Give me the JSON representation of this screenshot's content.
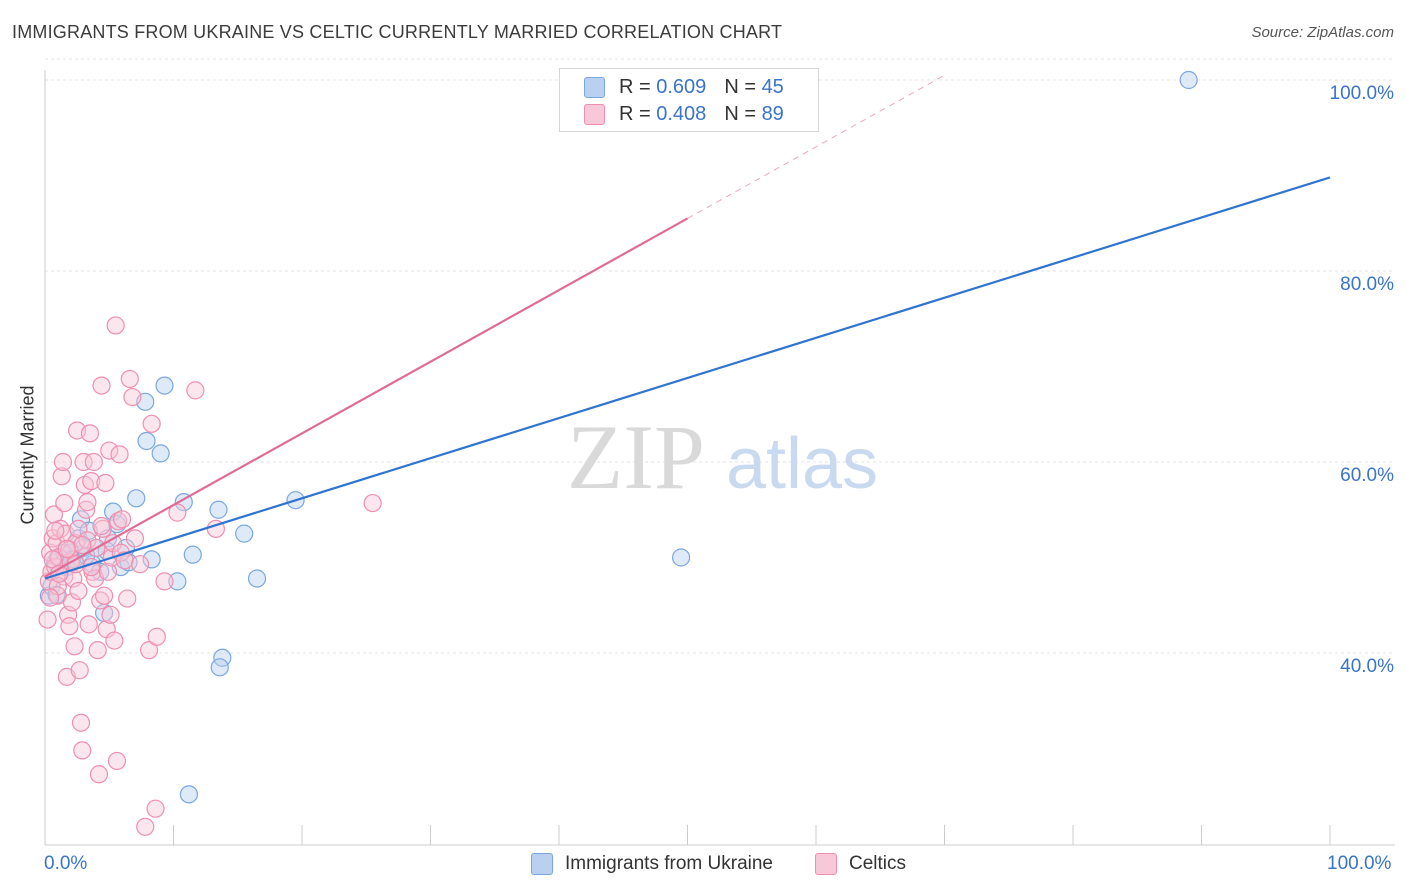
{
  "title": "IMMIGRANTS FROM UKRAINE VS CELTIC CURRENTLY MARRIED CORRELATION CHART",
  "source": "Source: ZipAtlas.com",
  "watermark": {
    "zip": "ZIP",
    "atlas": "atlas"
  },
  "legend": {
    "r_label": "R =",
    "n_label": "N =",
    "series": [
      {
        "r": "0.609",
        "n": "45"
      },
      {
        "r": "0.408",
        "n": "89"
      }
    ]
  },
  "chart_data": {
    "type": "scatter",
    "title": "IMMIGRANTS FROM UKRAINE VS CELTIC CURRENTLY MARRIED CORRELATION CHART",
    "xlabel": "",
    "ylabel": "Currently Married",
    "xlim": [
      0,
      100
    ],
    "ylim": [
      20,
      102
    ],
    "x_tick_labels": [
      "0.0%",
      "100.0%"
    ],
    "y_ticks": [
      {
        "value": 40,
        "label": "40.0%"
      },
      {
        "value": 60,
        "label": "60.0%"
      },
      {
        "value": 80,
        "label": "80.0%"
      },
      {
        "value": 100,
        "label": "100.0%"
      }
    ],
    "grid": true,
    "series": [
      {
        "name": "Immigrants from Ukraine",
        "color": "#7aa7e0",
        "fill": "#b9d0f0",
        "line_color": "#2f74d0",
        "trend": {
          "x0": 0,
          "y0": 47.8,
          "x1": 100,
          "y1": 89.8,
          "solid_to": 100
        },
        "points": [
          [
            0.3,
            46
          ],
          [
            0.5,
            47
          ],
          [
            0.8,
            49.5
          ],
          [
            1.0,
            50
          ],
          [
            1.2,
            48.5
          ],
          [
            1.5,
            50.5
          ],
          [
            1.7,
            49
          ],
          [
            2.0,
            50.5
          ],
          [
            2.3,
            49.8
          ],
          [
            2.6,
            52
          ],
          [
            2.8,
            54
          ],
          [
            3.0,
            51
          ],
          [
            3.4,
            52.8
          ],
          [
            3.7,
            49.3
          ],
          [
            4.0,
            51
          ],
          [
            4.3,
            48.5
          ],
          [
            4.6,
            44.2
          ],
          [
            4.9,
            52
          ],
          [
            5.3,
            54.8
          ],
          [
            5.6,
            53.5
          ],
          [
            5.9,
            49
          ],
          [
            6.3,
            51
          ],
          [
            6.5,
            49.5
          ],
          [
            7.1,
            56.2
          ],
          [
            7.8,
            66.3
          ],
          [
            7.9,
            62.2
          ],
          [
            8.3,
            49.8
          ],
          [
            9.0,
            60.9
          ],
          [
            9.3,
            68
          ],
          [
            10.3,
            47.5
          ],
          [
            10.8,
            55.8
          ],
          [
            11.5,
            50.3
          ],
          [
            13.5,
            55
          ],
          [
            13.8,
            39.5
          ],
          [
            13.6,
            38.5
          ],
          [
            15.5,
            52.5
          ],
          [
            16.5,
            47.8
          ],
          [
            11.2,
            25.2
          ],
          [
            19.5,
            56
          ],
          [
            49.5,
            50
          ],
          [
            89.0,
            100
          ],
          [
            2.1,
            49.8
          ],
          [
            0.9,
            46.1
          ],
          [
            3.2,
            50.2
          ],
          [
            4.8,
            50.7
          ]
        ]
      },
      {
        "name": "Celtics",
        "color": "#ee8fae",
        "fill": "#f8c8d8",
        "line_color": "#e06c95",
        "trend": {
          "x0": 0,
          "y0": 48.0,
          "x1": 70,
          "y1": 100.5,
          "solid_to": 50
        },
        "points": [
          [
            0.2,
            43.5
          ],
          [
            0.3,
            47.5
          ],
          [
            0.4,
            50.5
          ],
          [
            0.5,
            48.5
          ],
          [
            0.6,
            52
          ],
          [
            0.7,
            54.5
          ],
          [
            0.8,
            49
          ],
          [
            0.9,
            51.5
          ],
          [
            1.0,
            46
          ],
          [
            1.1,
            50
          ],
          [
            1.2,
            53
          ],
          [
            1.3,
            58.5
          ],
          [
            1.4,
            60
          ],
          [
            1.5,
            48
          ],
          [
            1.5,
            55.7
          ],
          [
            1.6,
            52.5
          ],
          [
            1.7,
            37.5
          ],
          [
            1.8,
            44
          ],
          [
            1.9,
            42.8
          ],
          [
            2.0,
            49.5
          ],
          [
            2.1,
            45.3
          ],
          [
            2.2,
            47.8
          ],
          [
            2.3,
            40.7
          ],
          [
            2.4,
            51.5
          ],
          [
            2.5,
            63.3
          ],
          [
            2.6,
            53
          ],
          [
            2.7,
            38.2
          ],
          [
            2.8,
            32.7
          ],
          [
            2.9,
            29.8
          ],
          [
            3.0,
            60
          ],
          [
            3.1,
            57.6
          ],
          [
            3.2,
            55
          ],
          [
            3.3,
            51.8
          ],
          [
            3.4,
            43
          ],
          [
            3.5,
            63
          ],
          [
            3.6,
            58
          ],
          [
            3.7,
            48.5
          ],
          [
            3.8,
            60
          ],
          [
            3.9,
            47.8
          ],
          [
            4.0,
            51
          ],
          [
            4.1,
            40.3
          ],
          [
            4.2,
            27.3
          ],
          [
            4.3,
            45.5
          ],
          [
            4.4,
            68
          ],
          [
            4.5,
            53
          ],
          [
            4.6,
            46
          ],
          [
            4.7,
            57.8
          ],
          [
            4.8,
            42.5
          ],
          [
            4.9,
            48.5
          ],
          [
            5.0,
            61.2
          ],
          [
            5.1,
            44
          ],
          [
            5.2,
            50
          ],
          [
            5.3,
            51.5
          ],
          [
            5.4,
            41.3
          ],
          [
            5.5,
            74.3
          ],
          [
            5.6,
            28.7
          ],
          [
            5.7,
            53.8
          ],
          [
            5.8,
            60.8
          ],
          [
            5.9,
            50.5
          ],
          [
            6.0,
            54
          ],
          [
            6.2,
            49.7
          ],
          [
            6.4,
            45.7
          ],
          [
            6.6,
            68.7
          ],
          [
            6.8,
            66.8
          ],
          [
            7.0,
            52
          ],
          [
            7.4,
            49.3
          ],
          [
            7.8,
            21.8
          ],
          [
            8.1,
            40.3
          ],
          [
            8.3,
            64
          ],
          [
            8.7,
            41.7
          ],
          [
            8.6,
            23.7
          ],
          [
            9.3,
            47.5
          ],
          [
            10.3,
            54.7
          ],
          [
            11.7,
            67.5
          ],
          [
            13.3,
            53
          ],
          [
            25.5,
            55.7
          ],
          [
            1.0,
            47
          ],
          [
            1.9,
            50.8
          ],
          [
            2.4,
            49.3
          ],
          [
            0.6,
            49.8
          ],
          [
            1.1,
            48.3
          ],
          [
            2.9,
            51.3
          ],
          [
            3.6,
            49
          ],
          [
            4.4,
            53.3
          ],
          [
            0.8,
            52.8
          ],
          [
            1.7,
            50.9
          ],
          [
            2.6,
            46.5
          ],
          [
            3.3,
            55.8
          ],
          [
            0.4,
            45.8
          ]
        ]
      }
    ]
  },
  "bottom_legend": [
    "Immigrants from Ukraine",
    "Celtics"
  ]
}
